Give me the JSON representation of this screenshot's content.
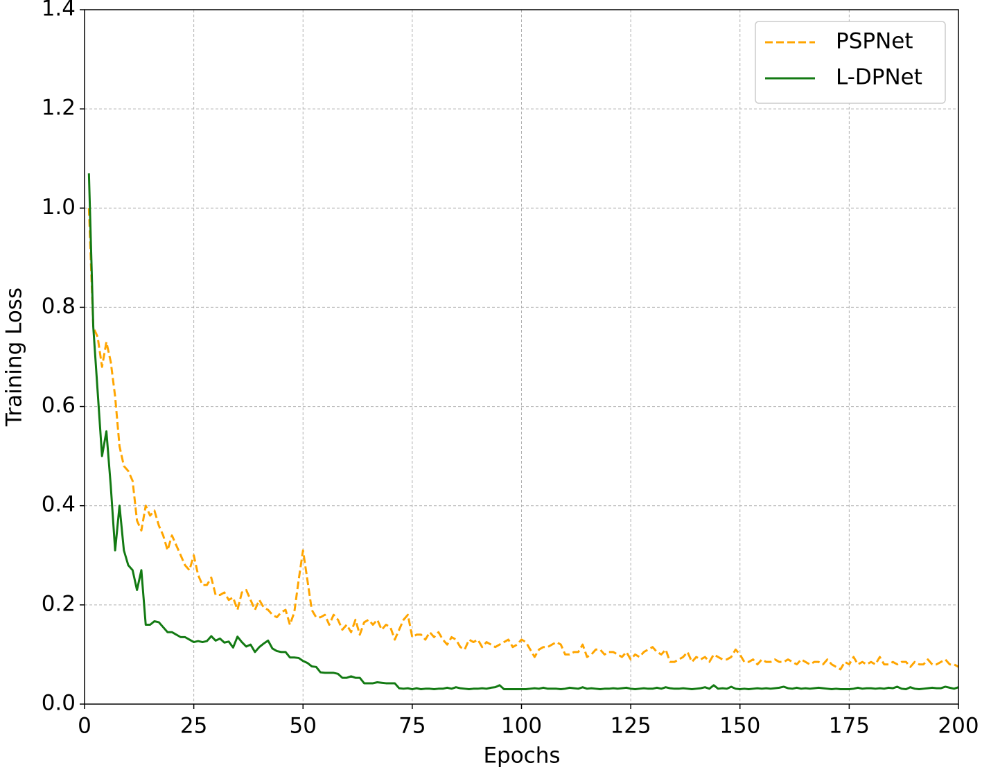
{
  "chart_data": {
    "type": "line",
    "xlabel": "Epochs",
    "ylabel": "Training Loss",
    "xlim": [
      0,
      200
    ],
    "ylim": [
      0,
      1.4
    ],
    "xticks": [
      0,
      25,
      50,
      75,
      100,
      125,
      150,
      175,
      200
    ],
    "yticks": [
      {
        "value": 0,
        "label": "0.0"
      },
      0.2,
      0.4,
      0.6,
      0.8,
      {
        "value": 1,
        "label": "1.0"
      },
      1.2,
      1.4
    ],
    "grid": true,
    "legend": "upper right",
    "x": [
      1,
      2,
      3,
      4,
      5,
      6,
      7,
      8,
      9,
      10,
      11,
      12,
      13,
      14,
      15,
      16,
      17,
      18,
      19,
      20,
      21,
      22,
      23,
      24,
      25,
      26,
      27,
      28,
      29,
      30,
      31,
      32,
      33,
      34,
      35,
      36,
      37,
      38,
      39,
      40,
      41,
      42,
      43,
      44,
      45,
      46,
      47,
      48,
      49,
      50,
      51,
      52,
      53,
      54,
      55,
      56,
      57,
      58,
      59,
      60,
      61,
      62,
      63,
      64,
      65,
      66,
      67,
      68,
      69,
      70,
      71,
      72,
      73,
      74,
      75,
      76,
      77,
      78,
      79,
      80,
      81,
      82,
      83,
      84,
      85,
      86,
      87,
      88,
      89,
      90,
      91,
      92,
      93,
      94,
      95,
      96,
      97,
      98,
      99,
      100,
      101,
      102,
      103,
      104,
      105,
      106,
      107,
      108,
      109,
      110,
      111,
      112,
      113,
      114,
      115,
      116,
      117,
      118,
      119,
      120,
      121,
      122,
      123,
      124,
      125,
      126,
      127,
      128,
      129,
      130,
      131,
      132,
      133,
      134,
      135,
      136,
      137,
      138,
      139,
      140,
      141,
      142,
      143,
      144,
      145,
      146,
      147,
      148,
      149,
      150,
      151,
      152,
      153,
      154,
      155,
      156,
      157,
      158,
      159,
      160,
      161,
      162,
      163,
      164,
      165,
      166,
      167,
      168,
      169,
      170,
      171,
      172,
      173,
      174,
      175,
      176,
      177,
      178,
      179,
      180,
      181,
      182,
      183,
      184,
      185,
      186,
      187,
      188,
      189,
      190,
      191,
      192,
      193,
      194,
      195,
      196,
      197,
      198,
      199,
      200
    ],
    "series": [
      {
        "name": "PSPNet",
        "color": "#ffa500",
        "dash": true,
        "values": [
          1.0,
          0.76,
          0.74,
          0.68,
          0.73,
          0.69,
          0.62,
          0.52,
          0.48,
          0.47,
          0.45,
          0.37,
          0.35,
          0.4,
          0.38,
          0.39,
          0.36,
          0.34,
          0.31,
          0.34,
          0.32,
          0.3,
          0.28,
          0.27,
          0.3,
          0.26,
          0.24,
          0.24,
          0.255,
          0.22,
          0.22,
          0.225,
          0.21,
          0.215,
          0.19,
          0.225,
          0.23,
          0.21,
          0.19,
          0.21,
          0.195,
          0.19,
          0.18,
          0.175,
          0.185,
          0.19,
          0.16,
          0.185,
          0.25,
          0.31,
          0.25,
          0.19,
          0.175,
          0.175,
          0.18,
          0.16,
          0.18,
          0.17,
          0.15,
          0.16,
          0.145,
          0.17,
          0.14,
          0.165,
          0.17,
          0.16,
          0.17,
          0.15,
          0.16,
          0.155,
          0.13,
          0.15,
          0.17,
          0.18,
          0.135,
          0.14,
          0.14,
          0.13,
          0.145,
          0.135,
          0.145,
          0.13,
          0.12,
          0.135,
          0.13,
          0.115,
          0.11,
          0.13,
          0.125,
          0.13,
          0.115,
          0.125,
          0.12,
          0.115,
          0.12,
          0.125,
          0.13,
          0.115,
          0.12,
          0.13,
          0.125,
          0.11,
          0.095,
          0.11,
          0.115,
          0.115,
          0.12,
          0.125,
          0.12,
          0.1,
          0.1,
          0.105,
          0.105,
          0.12,
          0.095,
          0.1,
          0.11,
          0.11,
          0.1,
          0.105,
          0.105,
          0.1,
          0.095,
          0.105,
          0.09,
          0.1,
          0.095,
          0.105,
          0.11,
          0.115,
          0.105,
          0.1,
          0.11,
          0.085,
          0.085,
          0.09,
          0.095,
          0.105,
          0.085,
          0.095,
          0.09,
          0.095,
          0.085,
          0.1,
          0.095,
          0.09,
          0.09,
          0.095,
          0.11,
          0.1,
          0.085,
          0.085,
          0.09,
          0.08,
          0.09,
          0.085,
          0.085,
          0.09,
          0.085,
          0.085,
          0.09,
          0.085,
          0.08,
          0.09,
          0.085,
          0.08,
          0.085,
          0.085,
          0.08,
          0.09,
          0.08,
          0.075,
          0.07,
          0.085,
          0.08,
          0.095,
          0.08,
          0.085,
          0.08,
          0.085,
          0.08,
          0.095,
          0.08,
          0.08,
          0.085,
          0.08,
          0.085,
          0.085,
          0.075,
          0.085,
          0.08,
          0.08,
          0.09,
          0.08,
          0.08,
          0.085,
          0.09,
          0.08,
          0.08,
          0.075
        ]
      },
      {
        "name": "L-DPNet",
        "color": "#137a13",
        "dash": false,
        "values": [
          1.07,
          0.76,
          0.63,
          0.5,
          0.55,
          0.44,
          0.31,
          0.4,
          0.31,
          0.28,
          0.27,
          0.23,
          0.27,
          0.16,
          0.16,
          0.167,
          0.165,
          0.155,
          0.145,
          0.145,
          0.14,
          0.135,
          0.135,
          0.13,
          0.125,
          0.127,
          0.125,
          0.127,
          0.137,
          0.128,
          0.132,
          0.124,
          0.126,
          0.114,
          0.136,
          0.125,
          0.116,
          0.12,
          0.105,
          0.115,
          0.122,
          0.128,
          0.112,
          0.107,
          0.105,
          0.105,
          0.094,
          0.094,
          0.093,
          0.087,
          0.083,
          0.076,
          0.075,
          0.064,
          0.063,
          0.063,
          0.063,
          0.061,
          0.053,
          0.053,
          0.056,
          0.053,
          0.053,
          0.042,
          0.042,
          0.042,
          0.044,
          0.043,
          0.042,
          0.042,
          0.042,
          0.032,
          0.031,
          0.032,
          0.03,
          0.032,
          0.03,
          0.031,
          0.031,
          0.03,
          0.031,
          0.031,
          0.033,
          0.031,
          0.034,
          0.032,
          0.031,
          0.03,
          0.031,
          0.031,
          0.032,
          0.031,
          0.033,
          0.034,
          0.038,
          0.03,
          0.03,
          0.03,
          0.03,
          0.03,
          0.03,
          0.031,
          0.032,
          0.031,
          0.033,
          0.031,
          0.031,
          0.031,
          0.03,
          0.031,
          0.033,
          0.032,
          0.031,
          0.034,
          0.031,
          0.032,
          0.031,
          0.03,
          0.031,
          0.031,
          0.032,
          0.031,
          0.032,
          0.033,
          0.031,
          0.03,
          0.031,
          0.032,
          0.031,
          0.031,
          0.033,
          0.031,
          0.034,
          0.032,
          0.031,
          0.031,
          0.032,
          0.031,
          0.03,
          0.031,
          0.032,
          0.034,
          0.031,
          0.038,
          0.031,
          0.032,
          0.031,
          0.035,
          0.031,
          0.03,
          0.031,
          0.03,
          0.031,
          0.032,
          0.031,
          0.032,
          0.031,
          0.032,
          0.033,
          0.035,
          0.032,
          0.031,
          0.033,
          0.031,
          0.032,
          0.031,
          0.032,
          0.033,
          0.032,
          0.031,
          0.03,
          0.031,
          0.03,
          0.03,
          0.03,
          0.031,
          0.033,
          0.031,
          0.032,
          0.032,
          0.031,
          0.032,
          0.031,
          0.033,
          0.032,
          0.035,
          0.031,
          0.03,
          0.034,
          0.031,
          0.03,
          0.031,
          0.032,
          0.033,
          0.032,
          0.032,
          0.035,
          0.033,
          0.031,
          0.034
        ]
      }
    ]
  }
}
